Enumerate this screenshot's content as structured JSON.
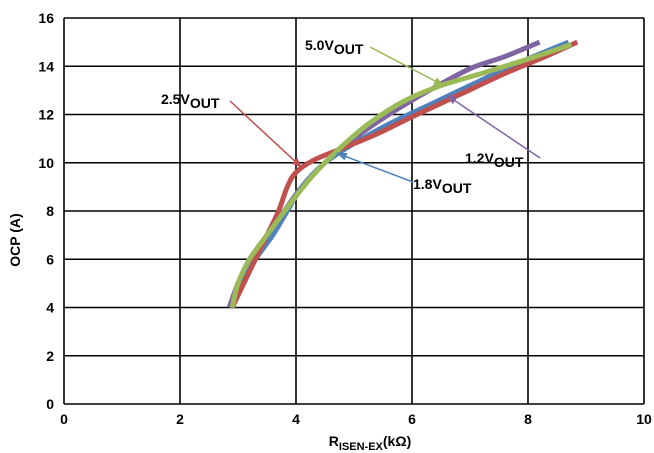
{
  "chart_data": {
    "type": "line",
    "title": "",
    "xlabel": {
      "main": "R",
      "sub": "ISEN-EX",
      "unit": "(kΩ)"
    },
    "ylabel": "OCP (A)",
    "xlim": [
      0,
      10
    ],
    "ylim": [
      0,
      16
    ],
    "xticks": [
      "0",
      "2",
      "4",
      "6",
      "8",
      "10"
    ],
    "yticks": [
      "0",
      "2",
      "4",
      "6",
      "8",
      "10",
      "12",
      "14",
      "16"
    ],
    "grid": true,
    "series": [
      {
        "name": "1.2V_OUT",
        "label_main": "1.2V",
        "label_sub": "OUT",
        "color": "#8064a2",
        "x": [
          2.85,
          3.0,
          3.2,
          3.5,
          3.8,
          4.1,
          4.5,
          5.0,
          5.6,
          6.3,
          7.0,
          7.6,
          8.2
        ],
        "y": [
          4.0,
          5.0,
          6.0,
          7.0,
          8.0,
          9.0,
          10.0,
          11.0,
          12.0,
          13.0,
          13.9,
          14.4,
          15.0
        ]
      },
      {
        "name": "1.8V_OUT",
        "label_main": "1.8V",
        "label_sub": "OUT",
        "color": "#4f81bd",
        "x": [
          2.9,
          3.05,
          3.3,
          3.6,
          3.85,
          4.1,
          4.5,
          5.0,
          5.6,
          6.3,
          7.0,
          7.8,
          8.7
        ],
        "y": [
          4.0,
          5.0,
          6.0,
          7.0,
          8.0,
          9.0,
          10.0,
          10.8,
          11.6,
          12.4,
          13.2,
          14.1,
          15.0
        ]
      },
      {
        "name": "2.5V_OUT",
        "label_main": "2.5V",
        "label_sub": "OUT",
        "color": "#c0504d",
        "x": [
          2.9,
          3.2,
          3.5,
          3.7,
          3.85,
          4.0,
          4.3,
          4.8,
          5.4,
          6.0,
          6.8,
          7.6,
          8.2,
          8.85
        ],
        "y": [
          4.0,
          5.5,
          7.0,
          8.0,
          9.0,
          9.6,
          10.1,
          10.6,
          11.2,
          11.9,
          12.8,
          13.7,
          14.3,
          15.0
        ]
      },
      {
        "name": "5.0V_OUT",
        "label_main": "5.0V",
        "label_sub": "OUT",
        "color": "#9bbb59",
        "x": [
          2.9,
          3.0,
          3.2,
          3.5,
          3.9,
          4.3,
          4.8,
          5.3,
          5.9,
          6.5,
          7.2,
          8.0,
          8.75
        ],
        "y": [
          4.0,
          5.0,
          6.0,
          7.0,
          8.3,
          9.5,
          10.7,
          11.7,
          12.6,
          13.2,
          13.7,
          14.3,
          14.9
        ]
      }
    ],
    "annotations": [
      {
        "series": "5.0V_OUT",
        "text_main": "5.0V",
        "text_sub": "OUT",
        "point": [
          6.55,
          13.2
        ]
      },
      {
        "series": "2.5V_OUT",
        "text_main": "2.5V",
        "text_sub": "OUT",
        "point": [
          4.1,
          9.8
        ]
      },
      {
        "series": "1.2V_OUT",
        "text_main": "1.2V",
        "text_sub": "OUT",
        "point": [
          6.6,
          12.8
        ]
      },
      {
        "series": "1.8V_OUT",
        "text_main": "1.8V",
        "text_sub": "OUT",
        "point": [
          4.7,
          10.4
        ]
      }
    ]
  }
}
